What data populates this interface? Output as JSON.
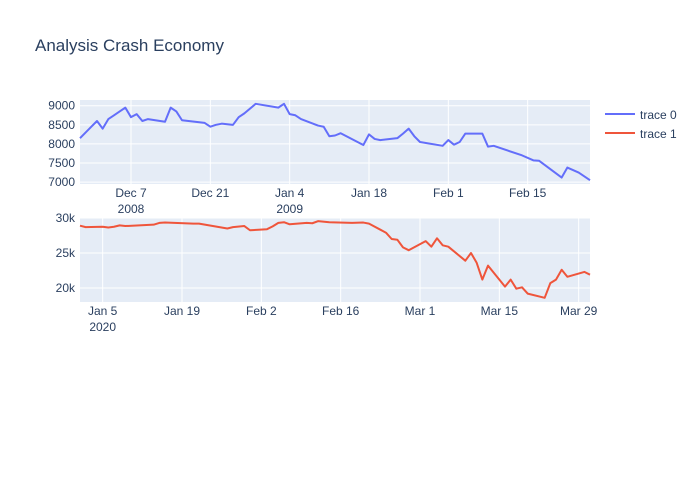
{
  "title": "Analysis Crash Economy",
  "chart_data": [
    {
      "type": "line",
      "subplot": "top",
      "series": [
        {
          "name": "trace 0",
          "color": "#636efa",
          "points": [
            [
              "2008-11-28",
              8150
            ],
            [
              "2008-11-30",
              8450
            ],
            [
              "2008-12-01",
              8600
            ],
            [
              "2008-12-02",
              8400
            ],
            [
              "2008-12-03",
              8650
            ],
            [
              "2008-12-04",
              8750
            ],
            [
              "2008-12-05",
              8850
            ],
            [
              "2008-12-06",
              8950
            ],
            [
              "2008-12-07",
              8700
            ],
            [
              "2008-12-08",
              8780
            ],
            [
              "2008-12-09",
              8600
            ],
            [
              "2008-12-10",
              8650
            ],
            [
              "2008-12-13",
              8580
            ],
            [
              "2008-12-14",
              8950
            ],
            [
              "2008-12-15",
              8850
            ],
            [
              "2008-12-16",
              8620
            ],
            [
              "2008-12-20",
              8550
            ],
            [
              "2008-12-21",
              8450
            ],
            [
              "2008-12-22",
              8500
            ],
            [
              "2008-12-23",
              8530
            ],
            [
              "2008-12-25",
              8500
            ],
            [
              "2008-12-26",
              8700
            ],
            [
              "2008-12-27",
              8800
            ],
            [
              "2008-12-29",
              9050
            ],
            [
              "2009-01-02",
              8950
            ],
            [
              "2009-01-03",
              9050
            ],
            [
              "2009-01-04",
              8780
            ],
            [
              "2009-01-05",
              8750
            ],
            [
              "2009-01-06",
              8650
            ],
            [
              "2009-01-09",
              8480
            ],
            [
              "2009-01-10",
              8450
            ],
            [
              "2009-01-11",
              8200
            ],
            [
              "2009-01-12",
              8220
            ],
            [
              "2009-01-13",
              8280
            ],
            [
              "2009-01-17",
              7970
            ],
            [
              "2009-01-18",
              8250
            ],
            [
              "2009-01-19",
              8130
            ],
            [
              "2009-01-20",
              8100
            ],
            [
              "2009-01-23",
              8150
            ],
            [
              "2009-01-24",
              8270
            ],
            [
              "2009-01-25",
              8400
            ],
            [
              "2009-01-26",
              8200
            ],
            [
              "2009-01-27",
              8050
            ],
            [
              "2009-01-31",
              7950
            ],
            [
              "2009-02-01",
              8100
            ],
            [
              "2009-02-02",
              7980
            ],
            [
              "2009-02-03",
              8050
            ],
            [
              "2009-02-04",
              8270
            ],
            [
              "2009-02-07",
              8270
            ],
            [
              "2009-02-08",
              7930
            ],
            [
              "2009-02-09",
              7950
            ],
            [
              "2009-02-14",
              7700
            ],
            [
              "2009-02-16",
              7570
            ],
            [
              "2009-02-17",
              7560
            ],
            [
              "2009-02-21",
              7120
            ],
            [
              "2009-02-22",
              7380
            ],
            [
              "2009-02-24",
              7250
            ],
            [
              "2009-02-26",
              7050
            ]
          ]
        }
      ],
      "x_ticks": [
        {
          "date": "2008-12-07",
          "label": "Dec 7",
          "sublabel": "2008"
        },
        {
          "date": "2008-12-21",
          "label": "Dec 21",
          "sublabel": ""
        },
        {
          "date": "2009-01-04",
          "label": "Jan 4",
          "sublabel": "2009"
        },
        {
          "date": "2009-01-18",
          "label": "Jan 18",
          "sublabel": ""
        },
        {
          "date": "2009-02-01",
          "label": "Feb 1",
          "sublabel": ""
        },
        {
          "date": "2009-02-15",
          "label": "Feb 15",
          "sublabel": ""
        }
      ],
      "x_range": [
        "2008-11-28",
        "2009-02-26"
      ],
      "y_ticks": [
        7000,
        7500,
        8000,
        8500,
        9000
      ],
      "y_tick_labels": [
        "7000",
        "7500",
        "8000",
        "8500",
        "9000"
      ],
      "ylim": [
        6950,
        9150
      ],
      "grid": true
    },
    {
      "type": "line",
      "subplot": "bottom",
      "series": [
        {
          "name": "trace 1",
          "color": "#ef553b",
          "points": [
            [
              "2020-01-01",
              28900
            ],
            [
              "2020-01-02",
              28700
            ],
            [
              "2020-01-05",
              28750
            ],
            [
              "2020-01-06",
              28650
            ],
            [
              "2020-01-07",
              28750
            ],
            [
              "2020-01-08",
              28950
            ],
            [
              "2020-01-09",
              28850
            ],
            [
              "2020-01-14",
              29050
            ],
            [
              "2020-01-15",
              29300
            ],
            [
              "2020-01-16",
              29350
            ],
            [
              "2020-01-21",
              29200
            ],
            [
              "2020-01-22",
              29200
            ],
            [
              "2020-01-27",
              28500
            ],
            [
              "2020-01-28",
              28700
            ],
            [
              "2020-01-30",
              28850
            ],
            [
              "2020-01-31",
              28250
            ],
            [
              "2020-02-03",
              28400
            ],
            [
              "2020-02-04",
              28800
            ],
            [
              "2020-02-05",
              29300
            ],
            [
              "2020-02-06",
              29400
            ],
            [
              "2020-02-07",
              29100
            ],
            [
              "2020-02-10",
              29300
            ],
            [
              "2020-02-11",
              29250
            ],
            [
              "2020-02-12",
              29550
            ],
            [
              "2020-02-14",
              29400
            ],
            [
              "2020-02-18",
              29300
            ],
            [
              "2020-02-20",
              29350
            ],
            [
              "2020-02-21",
              29200
            ],
            [
              "2020-02-24",
              27900
            ],
            [
              "2020-02-25",
              27000
            ],
            [
              "2020-02-26",
              26900
            ],
            [
              "2020-02-27",
              25800
            ],
            [
              "2020-02-28",
              25400
            ],
            [
              "2020-03-02",
              26700
            ],
            [
              "2020-03-03",
              25900
            ],
            [
              "2020-03-04",
              27100
            ],
            [
              "2020-03-05",
              26100
            ],
            [
              "2020-03-06",
              25900
            ],
            [
              "2020-03-09",
              23900
            ],
            [
              "2020-03-10",
              25000
            ],
            [
              "2020-03-11",
              23600
            ],
            [
              "2020-03-12",
              21200
            ],
            [
              "2020-03-13",
              23200
            ],
            [
              "2020-03-16",
              20200
            ],
            [
              "2020-03-17",
              21200
            ],
            [
              "2020-03-18",
              19900
            ],
            [
              "2020-03-19",
              20100
            ],
            [
              "2020-03-20",
              19200
            ],
            [
              "2020-03-23",
              18600
            ],
            [
              "2020-03-24",
              20700
            ],
            [
              "2020-03-25",
              21200
            ],
            [
              "2020-03-26",
              22600
            ],
            [
              "2020-03-27",
              21600
            ],
            [
              "2020-03-30",
              22300
            ],
            [
              "2020-03-31",
              21900
            ]
          ]
        }
      ],
      "x_ticks": [
        {
          "date": "2020-01-05",
          "label": "Jan 5",
          "sublabel": "2020"
        },
        {
          "date": "2020-01-19",
          "label": "Jan 19",
          "sublabel": ""
        },
        {
          "date": "2020-02-02",
          "label": "Feb 2",
          "sublabel": ""
        },
        {
          "date": "2020-02-16",
          "label": "Feb 16",
          "sublabel": ""
        },
        {
          "date": "2020-03-01",
          "label": "Mar 1",
          "sublabel": ""
        },
        {
          "date": "2020-03-15",
          "label": "Mar 15",
          "sublabel": ""
        },
        {
          "date": "2020-03-29",
          "label": "Mar 29",
          "sublabel": ""
        }
      ],
      "x_range": [
        "2020-01-01",
        "2020-03-31"
      ],
      "y_ticks": [
        20000,
        25000,
        30000
      ],
      "y_tick_labels": [
        "20k",
        "25k",
        "30k"
      ],
      "ylim": [
        18000,
        30000
      ],
      "grid": true
    }
  ],
  "legend": {
    "placement": "top-right",
    "items": [
      {
        "label": "trace 0",
        "color": "#636efa"
      },
      {
        "label": "trace 1",
        "color": "#ef553b"
      }
    ]
  }
}
